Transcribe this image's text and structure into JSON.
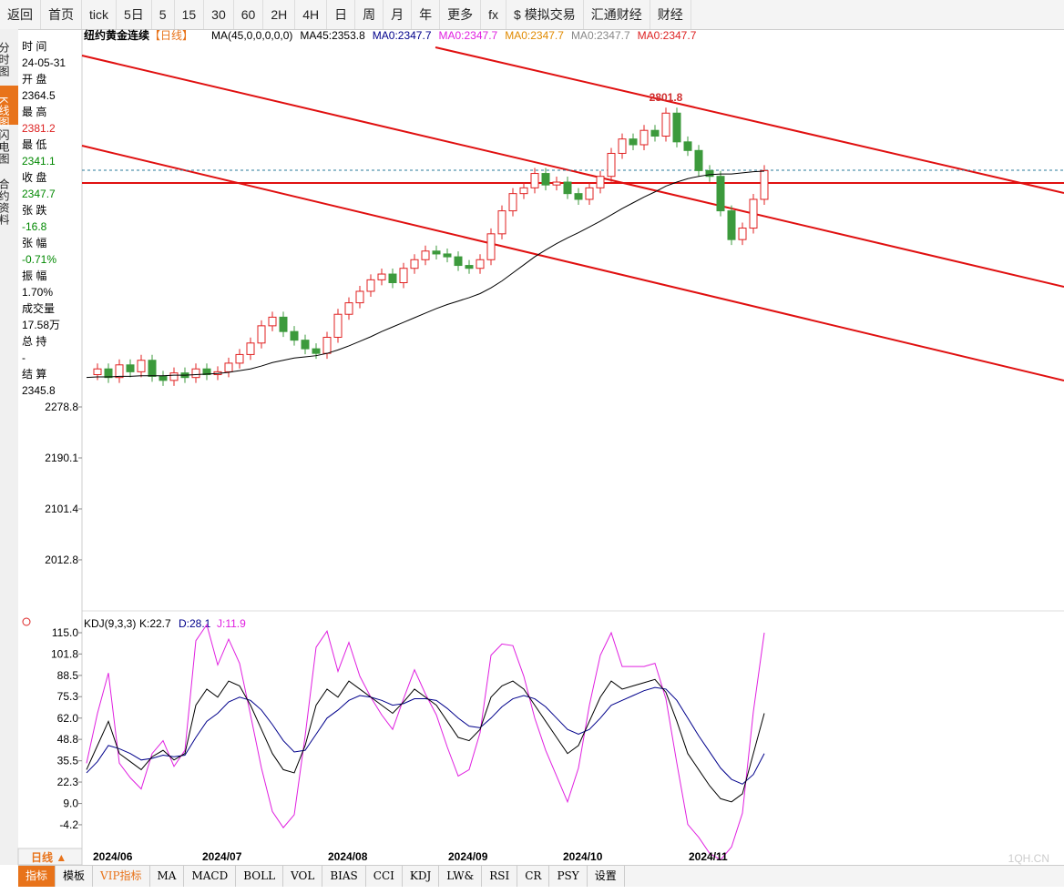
{
  "toolbar": [
    "返回",
    "首页",
    "tick",
    "5日",
    "5",
    "15",
    "30",
    "60",
    "2H",
    "4H",
    "日",
    "周",
    "月",
    "年",
    "更多",
    "fx",
    "$ 模拟交易",
    "汇通财经",
    "财经"
  ],
  "side_tabs": [
    "分时图",
    "K线图",
    "闪电图",
    "合约资料"
  ],
  "info": [
    {
      "label": "时 间",
      "value": "24-05-31",
      "color": "#000"
    },
    {
      "label": "开 盘",
      "value": "2364.5",
      "color": "#000"
    },
    {
      "label": "最 高",
      "value": "2381.2",
      "color": "#d22"
    },
    {
      "label": "最 低",
      "value": "2341.1",
      "color": "#080"
    },
    {
      "label": "收 盘",
      "value": "2347.7",
      "color": "#080"
    },
    {
      "label": "张 跌",
      "value": "-16.8",
      "color": "#080"
    },
    {
      "label": "张 幅",
      "value": "-0.71%",
      "color": "#080"
    },
    {
      "label": "振 幅",
      "value": "1.70%",
      "color": "#000"
    },
    {
      "label": "成交量",
      "value": "17.58万",
      "color": "#000"
    },
    {
      "label": "总 持",
      "value": "-",
      "color": "#000"
    },
    {
      "label": "结 算",
      "value": "2345.8",
      "color": "#000"
    }
  ],
  "price_chart": {
    "symbol": "纽约黄金连续",
    "period": "【日线】",
    "legend": [
      {
        "text": "MA(45,0,0,0,0,0)",
        "color": "#000"
      },
      {
        "text": "MA45:2353.8",
        "color": "#000"
      },
      {
        "text": "MA0:2347.7",
        "color": "#00008b"
      },
      {
        "text": "MA0:2347.7",
        "color": "#e020e0"
      },
      {
        "text": "MA0:2347.7",
        "color": "#e08a00"
      },
      {
        "text": "MA0:2347.7",
        "color": "#888"
      },
      {
        "text": "MA0:2347.7",
        "color": "#d22"
      }
    ],
    "ylim": [
      1925.6,
      2939.3
    ],
    "yticks": [
      2278.8,
      2190.1,
      2101.4,
      2012.8
    ],
    "peak": 2801.8,
    "closes": [
      2335,
      2345,
      2330,
      2352,
      2340,
      2360,
      2332,
      2325,
      2338,
      2330,
      2345,
      2335,
      2340,
      2355,
      2370,
      2390,
      2420,
      2435,
      2410,
      2395,
      2380,
      2372,
      2400,
      2440,
      2460,
      2480,
      2500,
      2510,
      2495,
      2520,
      2535,
      2550,
      2545,
      2540,
      2525,
      2520,
      2535,
      2580,
      2620,
      2650,
      2660,
      2685,
      2665,
      2670,
      2650,
      2640,
      2660,
      2680,
      2720,
      2745,
      2735,
      2760,
      2750,
      2790,
      2740,
      2725,
      2690,
      2680,
      2620,
      2570,
      2590,
      2640,
      2690
    ],
    "ma45": [
      2330,
      2331,
      2331,
      2332,
      2332,
      2333,
      2333,
      2333,
      2334,
      2334,
      2335,
      2336,
      2337,
      2339,
      2342,
      2345,
      2350,
      2356,
      2360,
      2364,
      2366,
      2368,
      2372,
      2378,
      2385,
      2393,
      2401,
      2410,
      2418,
      2426,
      2434,
      2442,
      2450,
      2457,
      2463,
      2469,
      2476,
      2486,
      2498,
      2512,
      2526,
      2540,
      2552,
      2563,
      2573,
      2582,
      2592,
      2602,
      2613,
      2624,
      2634,
      2644,
      2653,
      2663,
      2670,
      2676,
      2680,
      2683,
      2684,
      2684,
      2686,
      2688,
      2689
    ]
  },
  "kdj": {
    "title": "KDJ(9,3,3)",
    "k_label": "K:22.7",
    "d_label": "D:28.1",
    "j_label": "J:11.9",
    "ylim": [
      -17.8,
      126.3
    ],
    "yticks": [
      {
        "value": 115,
        "label": "115.0"
      },
      101.8,
      88.5,
      75.3,
      {
        "value": 62,
        "label": "62.0"
      },
      48.8,
      35.5,
      22.3,
      {
        "value": 9,
        "label": "9.0"
      },
      -4.2
    ],
    "k": [
      30,
      45,
      60,
      40,
      35,
      30,
      38,
      42,
      36,
      40,
      70,
      80,
      75,
      85,
      82,
      70,
      55,
      40,
      30,
      28,
      45,
      70,
      80,
      75,
      85,
      80,
      75,
      70,
      65,
      72,
      80,
      75,
      70,
      60,
      50,
      48,
      55,
      75,
      82,
      85,
      80,
      70,
      60,
      50,
      40,
      45,
      60,
      75,
      85,
      80,
      82,
      84,
      86,
      78,
      60,
      40,
      30,
      20,
      12,
      10,
      15,
      40,
      65
    ],
    "d": [
      28,
      35,
      45,
      43,
      40,
      36,
      37,
      39,
      38,
      39,
      50,
      60,
      65,
      72,
      75,
      73,
      67,
      58,
      48,
      41,
      42,
      52,
      62,
      67,
      73,
      76,
      75,
      73,
      70,
      71,
      74,
      74,
      73,
      68,
      62,
      57,
      56,
      62,
      69,
      74,
      76,
      74,
      69,
      62,
      55,
      52,
      55,
      62,
      70,
      73,
      76,
      79,
      81,
      80,
      73,
      62,
      51,
      41,
      31,
      24,
      21,
      27,
      40
    ],
    "j": [
      34,
      65,
      90,
      34,
      25,
      18,
      40,
      48,
      32,
      42,
      110,
      120,
      95,
      111,
      96,
      64,
      31,
      4,
      -6,
      2,
      51,
      106,
      116,
      91,
      109,
      88,
      75,
      64,
      55,
      74,
      92,
      77,
      64,
      44,
      26,
      30,
      53,
      101,
      108,
      107,
      88,
      62,
      42,
      26,
      10,
      31,
      70,
      101,
      115,
      94,
      94,
      94,
      96,
      74,
      34,
      -4,
      -12,
      -22,
      -26,
      -18,
      3,
      66,
      115
    ]
  },
  "dates": [
    "2024/06",
    "2024/07",
    "2024/08",
    "2024/09",
    "2024/10",
    "2024/11"
  ],
  "period_button": "日线 ▲",
  "bottom_tabs": [
    "指标",
    "模板",
    "VIP指标",
    "MA",
    "MACD",
    "BOLL",
    "VOL",
    "BIAS",
    "CCI",
    "KDJ",
    "LW&",
    "RSI",
    "CR",
    "PSY",
    "设置"
  ],
  "watermark": "1QH.CN"
}
